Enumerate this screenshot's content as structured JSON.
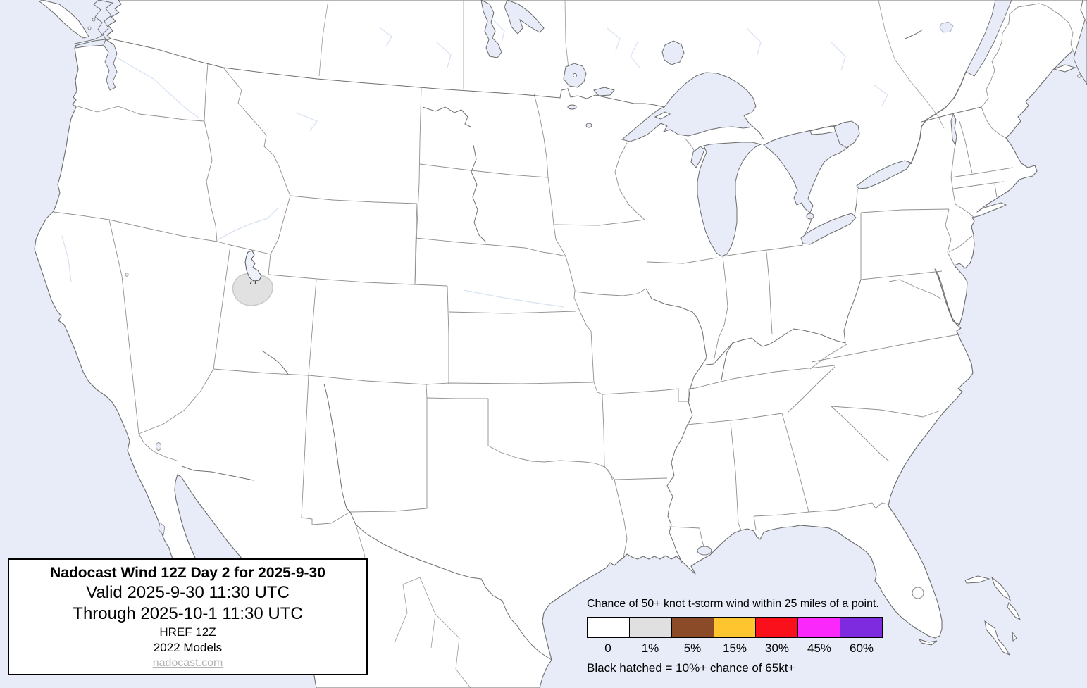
{
  "page": {
    "type": "forecast-map",
    "region": "Continental United States"
  },
  "title_box": {
    "title": "Nadocast Wind 12Z Day 2 for 2025-9-30",
    "valid_line": "Valid 2025-9-30 11:30 UTC",
    "through_line": "Through 2025-10-1 11:30 UTC",
    "model_line": "HREF 12Z",
    "models_line": "2022 Models",
    "website": "nadocast.com"
  },
  "legend": {
    "title": "Chance of 50+ knot t-storm wind within 25 miles of a point.",
    "bins": [
      {
        "label": "0",
        "color": "#FFFFFF"
      },
      {
        "label": "1%",
        "color": "#E0E0E0"
      },
      {
        "label": "5%",
        "color": "#8B4A28"
      },
      {
        "label": "15%",
        "color": "#FEC52F"
      },
      {
        "label": "30%",
        "color": "#FA101B"
      },
      {
        "label": "45%",
        "color": "#FA28FA"
      },
      {
        "label": "60%",
        "color": "#7E2BDF"
      }
    ],
    "note": "Black hatched = 10%+ chance of 65kt+"
  },
  "map": {
    "water_color": "#E7ECF8",
    "land_color": "#FFFFFF",
    "contours": [
      {
        "level": "1%",
        "color": "#E0E0E0",
        "location": "northern Utah, southwest of the Great Salt Lake"
      }
    ]
  }
}
